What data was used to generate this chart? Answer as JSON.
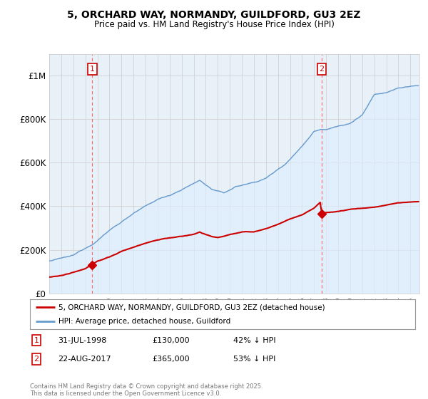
{
  "title1": "5, ORCHARD WAY, NORMANDY, GUILDFORD, GU3 2EZ",
  "title2": "Price paid vs. HM Land Registry's House Price Index (HPI)",
  "ylim": [
    0,
    1100000
  ],
  "yticks": [
    0,
    200000,
    400000,
    600000,
    800000,
    1000000
  ],
  "ytick_labels": [
    "£0",
    "£200K",
    "£400K",
    "£600K",
    "£800K",
    "£1M"
  ],
  "purchase1_date": 1998.58,
  "purchase1_price": 130000,
  "purchase1_label": "1",
  "purchase2_date": 2017.64,
  "purchase2_price": 365000,
  "purchase2_label": "2",
  "red_line_color": "#cc0000",
  "blue_line_color": "#6699cc",
  "blue_fill_color": "#ddeeff",
  "annotation_box_color": "#cc0000",
  "vline_color": "#ff6666",
  "background_color": "#ffffff",
  "grid_color": "#cccccc",
  "chart_bg_color": "#e8f0f8",
  "legend_label_red": "5, ORCHARD WAY, NORMANDY, GUILDFORD, GU3 2EZ (detached house)",
  "legend_label_blue": "HPI: Average price, detached house, Guildford",
  "footnote": "Contains HM Land Registry data © Crown copyright and database right 2025.\nThis data is licensed under the Open Government Licence v3.0.",
  "xmin": 1995,
  "xmax": 2025.75
}
